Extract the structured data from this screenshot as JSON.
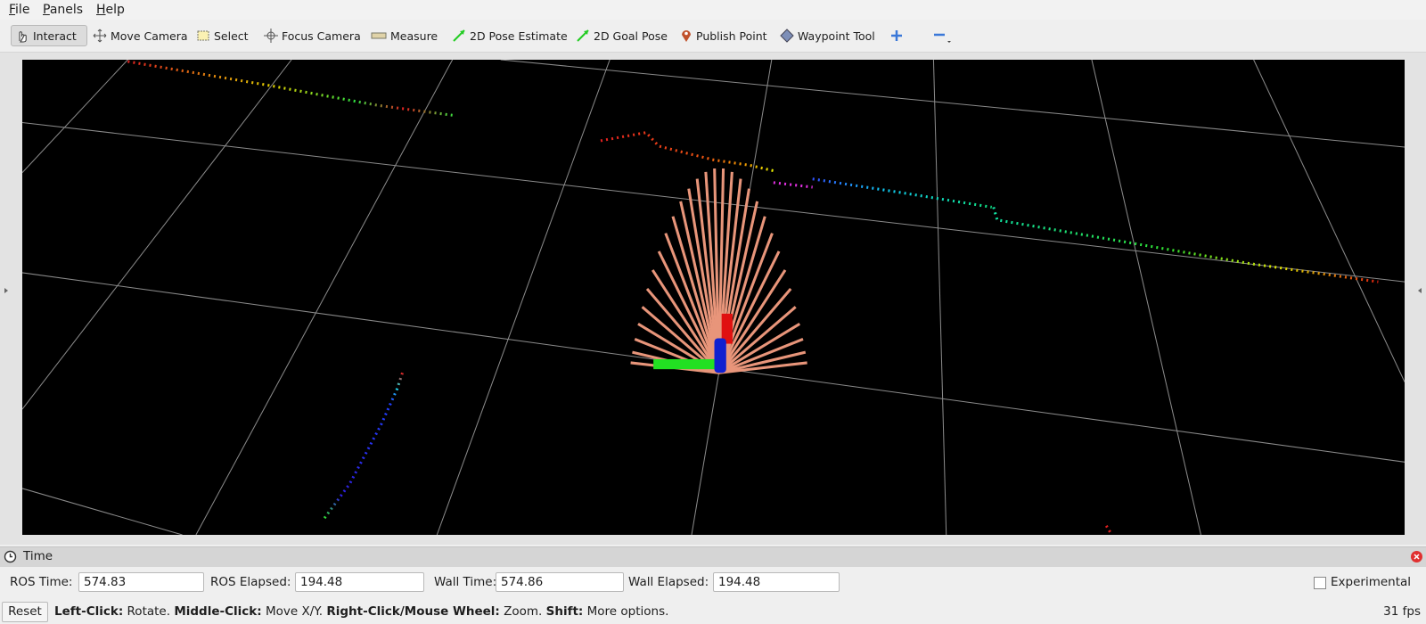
{
  "menu": [
    "File",
    "Panels",
    "Help"
  ],
  "toolbar": [
    "Interact",
    "Move Camera",
    "Select",
    "Focus Camera",
    "Measure",
    "2D Pose Estimate",
    "2D Goal Pose",
    "Publish Point",
    "Waypoint Tool"
  ],
  "time_panel": {
    "title": "Time",
    "fields": [
      {
        "label": "ROS Time:",
        "value": "574.83"
      },
      {
        "label": "ROS Elapsed:",
        "value": "194.48"
      },
      {
        "label": "Wall Time:",
        "value": "574.86"
      },
      {
        "label": "Wall Elapsed:",
        "value": "194.48"
      }
    ],
    "experimental": "Experimental"
  },
  "status_bar": {
    "reset": "Reset",
    "hints": [
      {
        "key": "Left-Click:",
        "action": "Rotate."
      },
      {
        "key": "Middle-Click:",
        "action": "Move X/Y."
      },
      {
        "key": "Right-Click/Mouse Wheel:",
        "action": "Zoom."
      },
      {
        "key": "Shift:",
        "action": "More options."
      }
    ],
    "fps": "31 fps"
  }
}
